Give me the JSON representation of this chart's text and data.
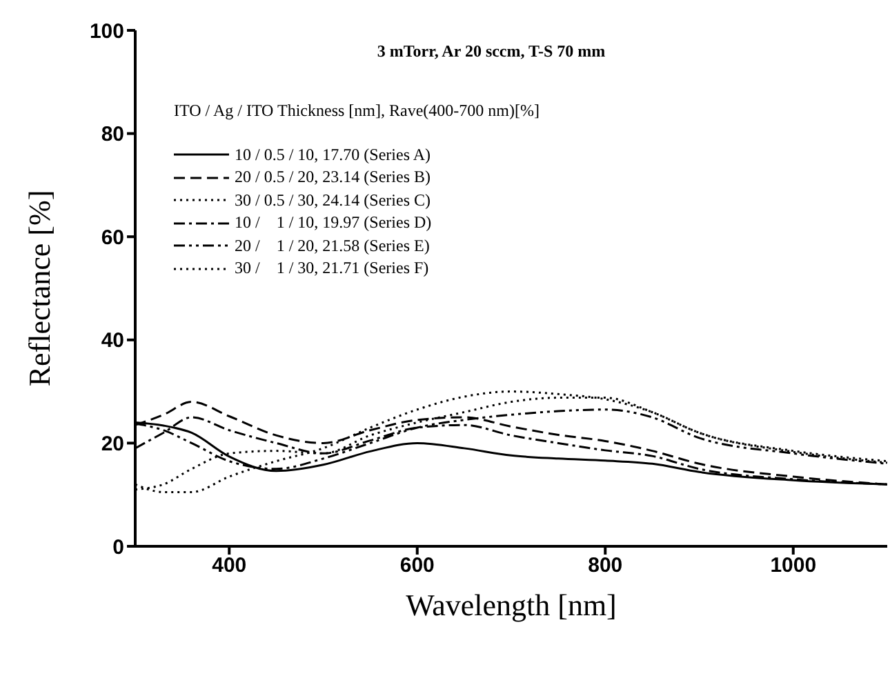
{
  "chart_data": {
    "type": "line",
    "title": "3 mTorr, Ar 20 sccm, T-S 70 mm",
    "legend_title": "ITO / Ag / ITO Thickness [nm], Rave(400-700 nm)[%]",
    "xlabel": "Wavelength [nm]",
    "ylabel": "Reflectance [%]",
    "x": [
      300,
      330,
      360,
      400,
      450,
      500,
      550,
      600,
      650,
      700,
      750,
      800,
      850,
      900,
      1000,
      1100
    ],
    "series": [
      {
        "name": "10 / 0.5 / 10, 17.70 (Series A)",
        "color": "#000000",
        "line_style": "solid",
        "values": [
          24,
          23.4,
          22,
          17.4,
          14.6,
          15.8,
          18.4,
          20,
          19,
          17.6,
          17,
          16.6,
          16,
          14.4,
          12.8,
          12
        ]
      },
      {
        "name": "20 / 0.5 / 20, 23.14 (Series B)",
        "color": "#000000",
        "line_style": "dashed",
        "values": [
          23.5,
          25.5,
          28,
          25.2,
          21.5,
          20,
          22.5,
          24.5,
          25,
          23.2,
          21.6,
          20.4,
          18.5,
          16,
          13.5,
          12
        ]
      },
      {
        "name": "30 / 0.5 / 30, 24.14 (Series C)",
        "color": "#000000",
        "line_style": "dotted",
        "values": [
          12,
          10.5,
          10.5,
          13.5,
          16.5,
          19,
          23,
          26.5,
          29,
          30,
          29.5,
          28.5,
          26,
          22,
          18.5,
          16.5
        ]
      },
      {
        "name": "10 /    1 / 10, 19.97 (Series D)",
        "color": "#000000",
        "line_style": "dashdot",
        "values": [
          19,
          22,
          25,
          22.5,
          20,
          18,
          20.5,
          23,
          23.5,
          21.5,
          20,
          18.6,
          17.5,
          15,
          13,
          12
        ]
      },
      {
        "name": "20 /    1 / 20, 21.58 (Series E)",
        "color": "#000000",
        "line_style": "dashdotdot",
        "values": [
          23.8,
          22.5,
          20,
          16.5,
          15,
          17,
          20,
          23,
          24.5,
          25.5,
          26.2,
          26.5,
          25,
          21,
          18,
          16
        ]
      },
      {
        "name": "30 /    1 / 30, 21.71 (Series F)",
        "color": "#000000",
        "line_style": "dotted",
        "values": [
          11,
          12,
          15,
          18,
          18.5,
          18,
          21.5,
          24,
          26,
          28,
          28.8,
          28.8,
          26,
          22,
          18.3,
          16.2
        ]
      }
    ],
    "xlim": [
      300,
      1100
    ],
    "xticks": [
      400,
      600,
      800,
      1000
    ],
    "ylim": [
      0,
      100
    ],
    "yticks": [
      0,
      20,
      40,
      60,
      80,
      100
    ],
    "grid": false,
    "legend": "top left",
    "marker": "none"
  }
}
